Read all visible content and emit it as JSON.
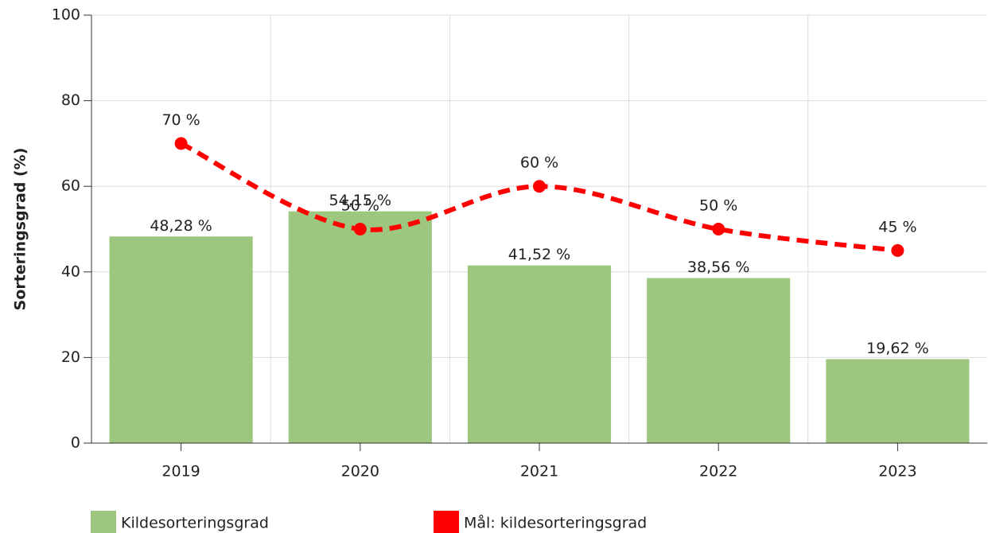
{
  "chart_data": {
    "type": "bar",
    "y_label": "Sorteringsgrad (%)",
    "categories": [
      "2019",
      "2020",
      "2021",
      "2022",
      "2023"
    ],
    "series": [
      {
        "name": "Kildesorteringsgrad",
        "type": "bar",
        "color": "#9dc67f",
        "values": [
          48.28,
          54.15,
          41.52,
          38.56,
          19.62
        ],
        "value_labels": [
          "48,28 %",
          "54,15 %",
          "41,52 %",
          "38,56 %",
          "19,62 %"
        ]
      },
      {
        "name": "Mål: kildesorteringsgrad",
        "type": "line",
        "color": "#ff0000",
        "values": [
          70,
          50,
          60,
          50,
          45
        ],
        "value_labels": [
          "70 %",
          "50 %",
          "60 %",
          "50 %",
          "45 %"
        ]
      }
    ],
    "ylim": [
      0,
      100
    ],
    "yticks": [
      0,
      20,
      40,
      60,
      80,
      100
    ],
    "grid": true
  }
}
